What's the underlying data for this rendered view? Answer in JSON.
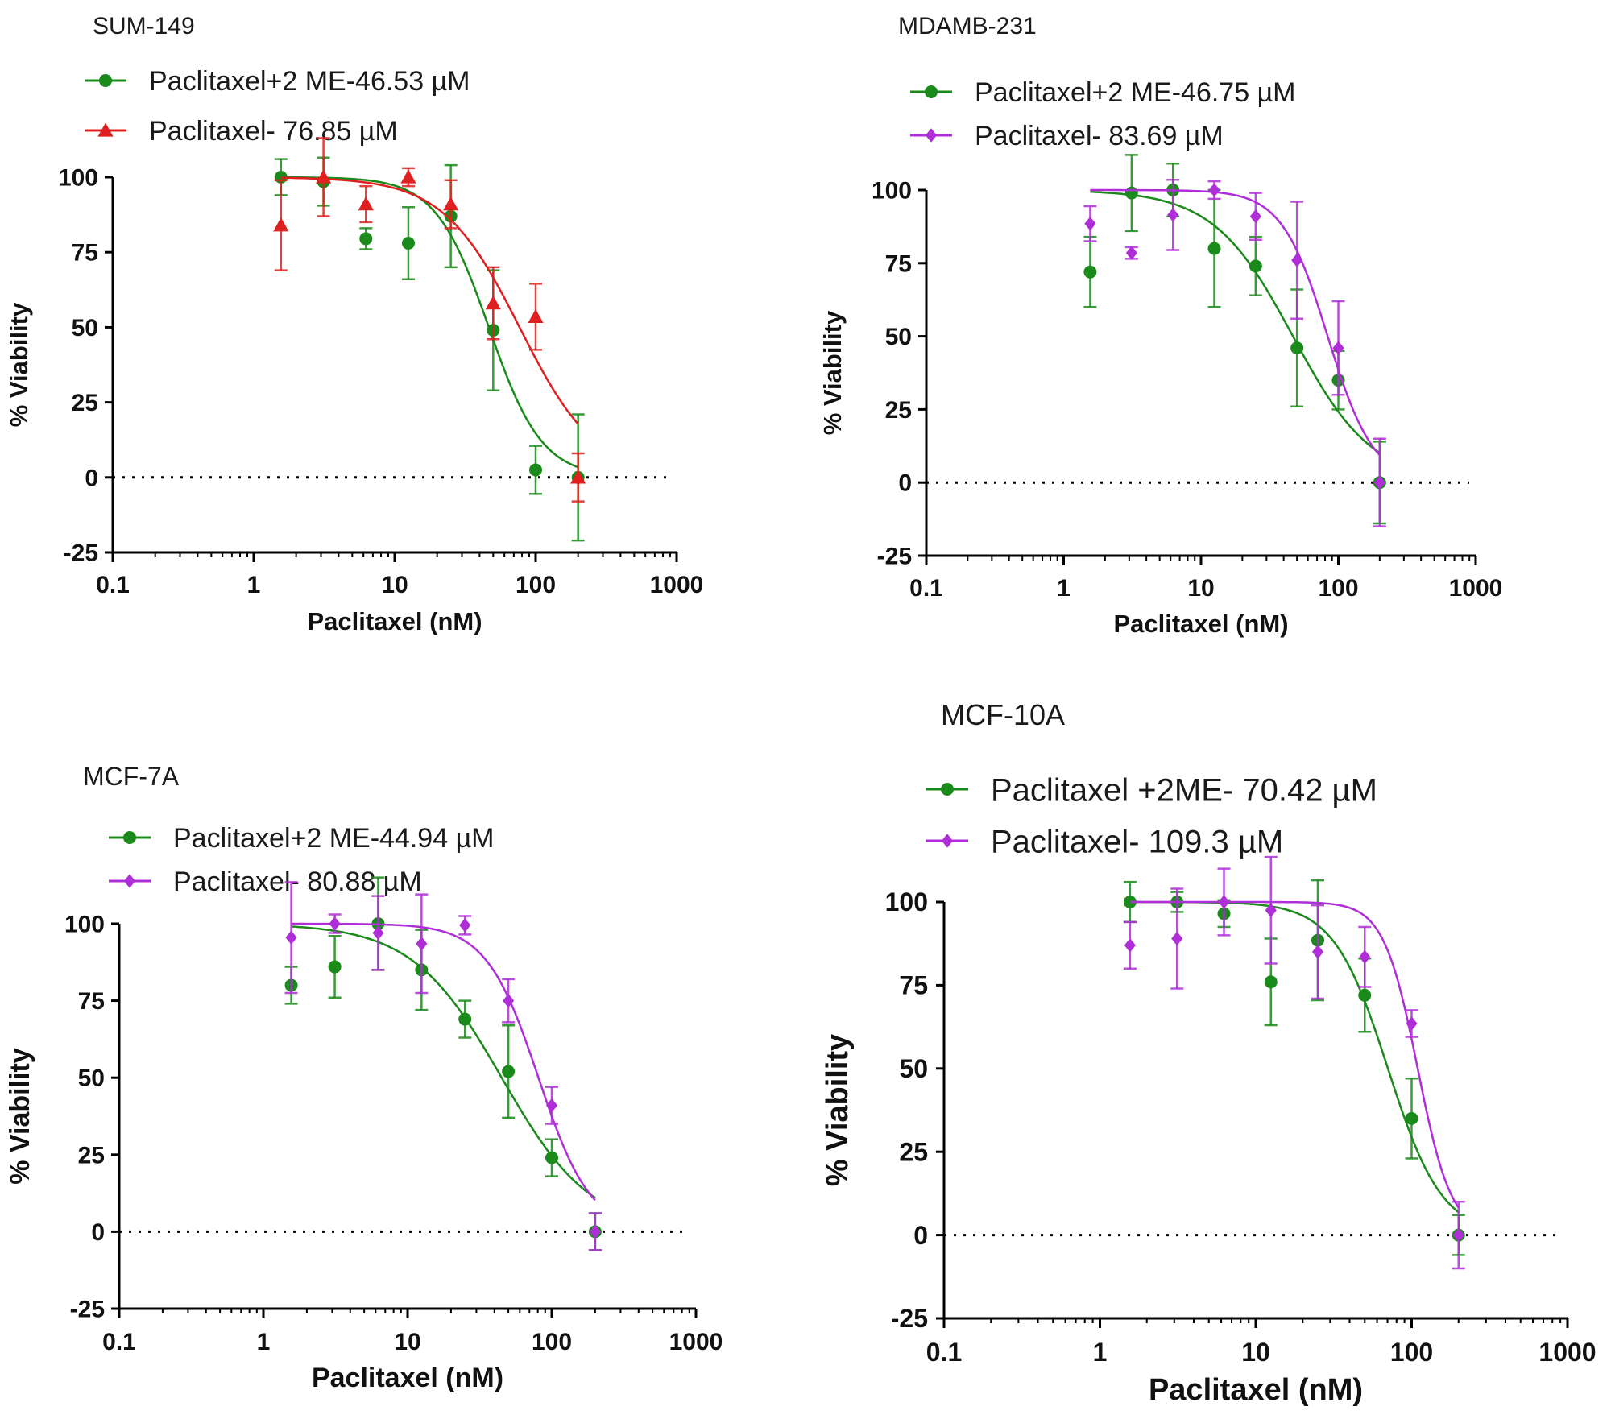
{
  "chart_data": [
    {
      "type": "scatter",
      "title": "SUM-149",
      "xlabel": "Paclitaxel (nM)",
      "ylabel": "% Viability",
      "xscale": "log",
      "xlim": [
        0.1,
        1000
      ],
      "ylim": [
        -25,
        100
      ],
      "xticks": [
        "0.1",
        "1",
        "10",
        "100",
        "1000"
      ],
      "yticks": [
        "100",
        "75",
        "50",
        "25",
        "0",
        "-25"
      ],
      "legend_position": "top-left",
      "series": [
        {
          "name": "Paclitaxel+2 ME-46.53 µM",
          "color": "#1a8a1a",
          "marker": "circle",
          "x": [
            1.56,
            3.125,
            6.25,
            12.5,
            25,
            50,
            100,
            200
          ],
          "y": [
            100,
            98.5,
            79.5,
            78,
            87,
            49,
            2.5,
            0
          ],
          "err": [
            6,
            8,
            3.5,
            12,
            17,
            20,
            8,
            21
          ],
          "fit": {
            "top": 100,
            "bottom": 0,
            "ic50": 46.53,
            "hill": 2.3
          }
        },
        {
          "name": "Paclitaxel- 76.85 µM",
          "color": "#e02020",
          "marker": "triangle",
          "x": [
            1.56,
            3.125,
            6.25,
            12.5,
            25,
            50,
            100,
            200
          ],
          "y": [
            84,
            100,
            91,
            100,
            91,
            58,
            53.5,
            0
          ],
          "err": [
            15,
            13,
            6,
            3,
            8,
            12,
            11,
            8
          ],
          "fit": {
            "top": 100,
            "bottom": 0,
            "ic50": 76.85,
            "hill": 1.6
          }
        }
      ]
    },
    {
      "type": "scatter",
      "title": "MDAMB-231",
      "xlabel": "Paclitaxel (nM)",
      "ylabel": "% Viability",
      "xscale": "log",
      "xlim": [
        0.1,
        1000
      ],
      "ylim": [
        -25,
        100
      ],
      "xticks": [
        "0.1",
        "1",
        "10",
        "100",
        "1000"
      ],
      "yticks": [
        "100",
        "75",
        "50",
        "25",
        "0",
        "-25"
      ],
      "legend_position": "top-left",
      "series": [
        {
          "name": "Paclitaxel+2 ME-46.75 µM",
          "color": "#1a8a1a",
          "marker": "circle",
          "x": [
            1.56,
            3.125,
            6.25,
            12.5,
            25,
            50,
            100,
            200
          ],
          "y": [
            72,
            99,
            100,
            80,
            74,
            46,
            35,
            0
          ],
          "err": [
            12,
            13,
            9,
            20,
            10,
            20,
            10,
            14
          ],
          "fit": {
            "top": 100,
            "bottom": 0,
            "ic50": 46.75,
            "hill": 1.5
          }
        },
        {
          "name": "Paclitaxel- 83.69 µM",
          "color": "#b02ed8",
          "marker": "diamond",
          "x": [
            1.56,
            3.125,
            6.25,
            12.5,
            25,
            50,
            100,
            200
          ],
          "y": [
            88.5,
            78.5,
            91.5,
            100,
            91,
            76,
            46,
            0
          ],
          "err": [
            6,
            2,
            12,
            3,
            8,
            20,
            16,
            15
          ],
          "fit": {
            "top": 100,
            "bottom": 0,
            "ic50": 83.69,
            "hill": 2.6
          }
        }
      ]
    },
    {
      "type": "scatter",
      "title": "MCF-7A",
      "xlabel": "Paclitaxel (nM)",
      "ylabel": "% Viability",
      "xscale": "log",
      "xlim": [
        0.1,
        1000
      ],
      "ylim": [
        -25,
        100
      ],
      "xticks": [
        "0.1",
        "1",
        "10",
        "100",
        "1000"
      ],
      "yticks": [
        "100",
        "75",
        "50",
        "25",
        "0",
        "-25"
      ],
      "legend_position": "top-left",
      "series": [
        {
          "name": "Paclitaxel+2 ME-44.94 µM",
          "color": "#1a8a1a",
          "marker": "circle",
          "x": [
            1.56,
            3.125,
            6.25,
            12.5,
            25,
            50,
            100,
            200
          ],
          "y": [
            80,
            86,
            100,
            85,
            69,
            52,
            24,
            0
          ],
          "err": [
            6,
            10,
            15,
            13,
            6,
            15,
            6,
            6
          ],
          "fit": {
            "top": 100,
            "bottom": 0,
            "ic50": 44.94,
            "hill": 1.4
          }
        },
        {
          "name": "Paclitaxel- 80.88 µM",
          "color": "#b02ed8",
          "marker": "diamond",
          "x": [
            1.56,
            3.125,
            6.25,
            12.5,
            25,
            50,
            100,
            200
          ],
          "y": [
            95.5,
            100,
            97,
            93.5,
            99.5,
            75,
            41,
            0
          ],
          "err": [
            18,
            3,
            12,
            16,
            3,
            7,
            6,
            6
          ],
          "fit": {
            "top": 100,
            "bottom": 0,
            "ic50": 80.88,
            "hill": 2.4
          }
        }
      ]
    },
    {
      "type": "scatter",
      "title": "MCF-10A",
      "xlabel": "Paclitaxel (nM)",
      "ylabel": "% Viability",
      "xscale": "log",
      "xlim": [
        0.1,
        1000
      ],
      "ylim": [
        -25,
        100
      ],
      "xticks": [
        "0.1",
        "1",
        "10",
        "100",
        "1000"
      ],
      "yticks": [
        "100",
        "75",
        "50",
        "25",
        "0",
        "-25"
      ],
      "legend_position": "top-left",
      "series": [
        {
          "name": "Paclitaxel +2ME- 70.42 µM",
          "color": "#1a8a1a",
          "marker": "circle",
          "x": [
            1.56,
            3.125,
            6.25,
            12.5,
            25,
            50,
            100,
            200
          ],
          "y": [
            100,
            100,
            96.5,
            76,
            88.5,
            72,
            35,
            0
          ],
          "err": [
            6,
            3,
            4,
            13,
            18,
            11,
            12,
            6
          ],
          "fit": {
            "top": 100,
            "bottom": 0,
            "ic50": 70.42,
            "hill": 2.5
          }
        },
        {
          "name": "Paclitaxel- 109.3 µM",
          "color": "#b02ed8",
          "marker": "diamond",
          "x": [
            1.56,
            3.125,
            6.25,
            12.5,
            25,
            50,
            100,
            200
          ],
          "y": [
            87,
            89,
            100,
            97.5,
            85,
            83.5,
            63.5,
            0
          ],
          "err": [
            7,
            15,
            10,
            16,
            14,
            9,
            4,
            10
          ],
          "fit": {
            "top": 100,
            "bottom": 0,
            "ic50": 109.3,
            "hill": 4.0
          }
        }
      ]
    }
  ]
}
